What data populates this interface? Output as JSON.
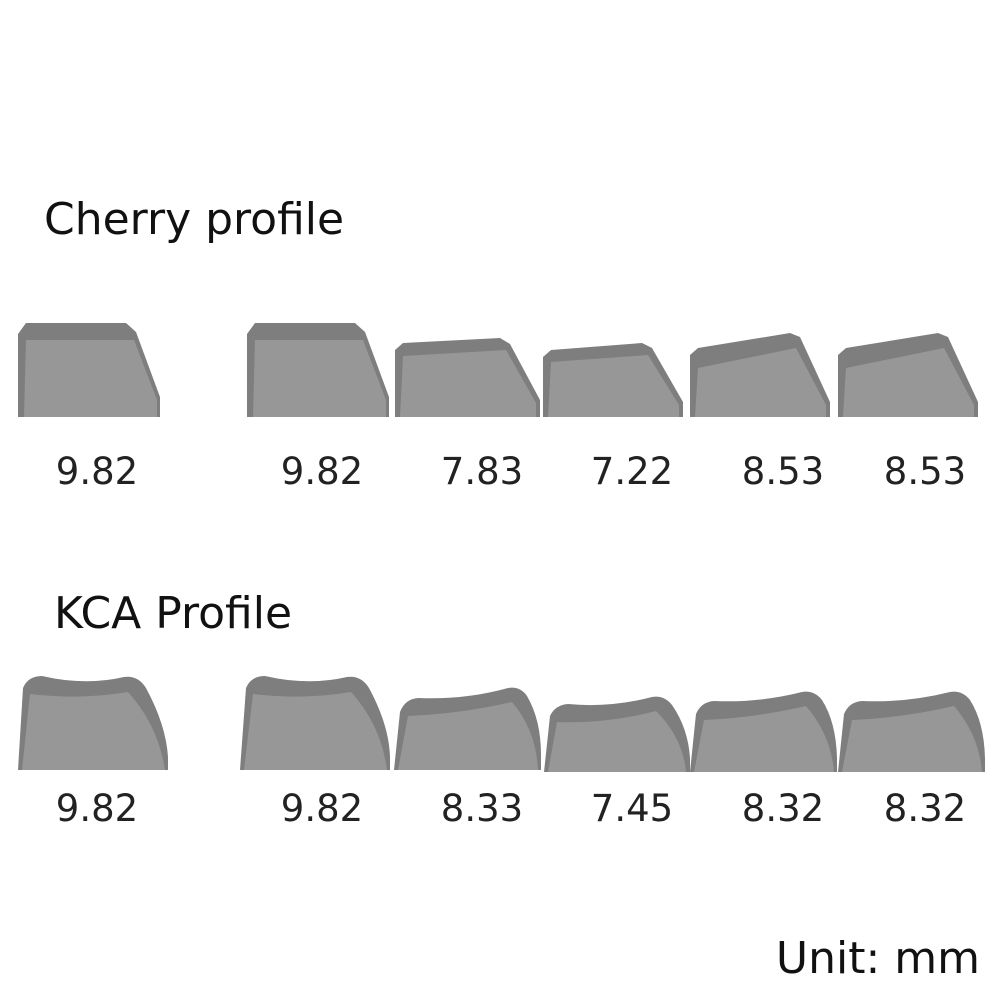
{
  "cherry": {
    "title": "Cherry profile",
    "keys": [
      "9.82",
      "9.82",
      "7.83",
      "7.22",
      "8.53",
      "8.53"
    ]
  },
  "kca": {
    "title": "KCA Profile",
    "keys": [
      "9.82",
      "9.82",
      "8.33",
      "7.45",
      "8.32",
      "8.32"
    ]
  },
  "unit": "Unit: mm"
}
